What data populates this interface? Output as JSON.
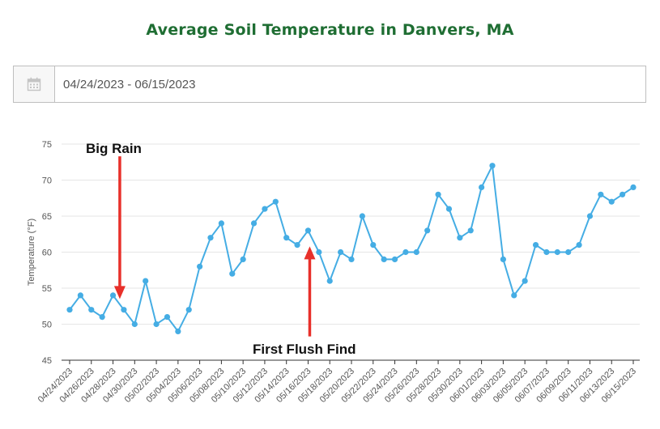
{
  "header": {
    "title": "Average Soil Temperature in Danvers, MA"
  },
  "date_range": {
    "value": "04/24/2023 - 06/15/2023",
    "icon": "calendar-icon"
  },
  "chart_data": {
    "type": "line",
    "title": "Average Soil Temperature in Danvers, MA",
    "ylabel": "Temperature (°F)",
    "xlabel": "",
    "ylim": [
      45,
      75
    ],
    "yticks": [
      45,
      50,
      55,
      60,
      65,
      70,
      75
    ],
    "grid": true,
    "line_color": "#45ade4",
    "x": [
      "04/24/2023",
      "04/25/2023",
      "04/26/2023",
      "04/27/2023",
      "04/28/2023",
      "04/29/2023",
      "04/30/2023",
      "05/01/2023",
      "05/02/2023",
      "05/03/2023",
      "05/04/2023",
      "05/05/2023",
      "05/06/2023",
      "05/07/2023",
      "05/08/2023",
      "05/09/2023",
      "05/10/2023",
      "05/11/2023",
      "05/12/2023",
      "05/13/2023",
      "05/14/2023",
      "05/15/2023",
      "05/16/2023",
      "05/17/2023",
      "05/18/2023",
      "05/19/2023",
      "05/20/2023",
      "05/21/2023",
      "05/22/2023",
      "05/23/2023",
      "05/24/2023",
      "05/25/2023",
      "05/26/2023",
      "05/27/2023",
      "05/28/2023",
      "05/29/2023",
      "05/30/2023",
      "05/31/2023",
      "06/01/2023",
      "06/02/2023",
      "06/03/2023",
      "06/04/2023",
      "06/05/2023",
      "06/06/2023",
      "06/07/2023",
      "06/08/2023",
      "06/09/2023",
      "06/10/2023",
      "06/11/2023",
      "06/12/2023",
      "06/13/2023",
      "06/14/2023",
      "06/15/2023"
    ],
    "xtick_labels": [
      "04/24/2023",
      "04/26/2023",
      "04/28/2023",
      "04/30/2023",
      "05/02/2023",
      "05/04/2023",
      "05/06/2023",
      "05/08/2023",
      "05/10/2023",
      "05/12/2023",
      "05/14/2023",
      "05/16/2023",
      "05/18/2023",
      "05/20/2023",
      "05/22/2023",
      "05/24/2023",
      "05/26/2023",
      "05/28/2023",
      "05/30/2023",
      "06/01/2023",
      "06/03/2023",
      "06/05/2023",
      "06/07/2023",
      "06/09/2023",
      "06/11/2023",
      "06/13/2023",
      "06/15/2023"
    ],
    "series": [
      {
        "name": "Average Soil Temperature",
        "values": [
          52,
          54,
          52,
          51,
          54,
          52,
          50,
          56,
          50,
          51,
          49,
          52,
          58,
          62,
          64,
          57,
          59,
          64,
          66,
          67,
          62,
          61,
          63,
          60,
          56,
          60,
          59,
          65,
          61,
          59,
          59,
          60,
          60,
          63,
          68,
          66,
          62,
          63,
          69,
          72,
          59,
          54,
          56,
          61,
          60,
          60,
          60,
          61,
          65,
          68,
          67,
          68,
          69
        ]
      }
    ],
    "annotations": [
      {
        "text": "Big Rain",
        "arrow": "down",
        "x": "04/29/2023",
        "arrow_from_y": 73.3,
        "arrow_to_y": 53.5,
        "color": "#e8302a"
      },
      {
        "text": "First Flush Find",
        "arrow": "up",
        "x": "05/16/2023",
        "arrow_from_y": 48.3,
        "arrow_to_y": 60.8,
        "color": "#e8302a"
      }
    ]
  }
}
